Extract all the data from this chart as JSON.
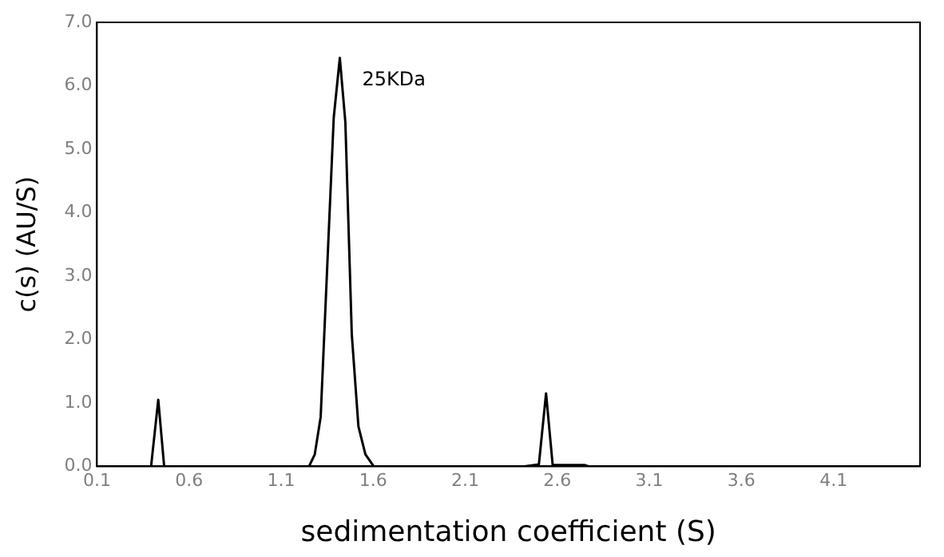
{
  "chart_data": {
    "type": "line",
    "xlabel": "sedimentation coefficient (S)",
    "ylabel": "c(s) (AU/S)",
    "x": [
      0.1,
      0.394,
      0.433,
      0.465,
      1.252,
      1.283,
      1.315,
      1.386,
      1.419,
      1.449,
      1.484,
      1.52,
      1.558,
      1.603,
      2.42,
      2.5,
      2.539,
      2.575,
      2.75,
      2.77,
      4.57
    ],
    "series": [
      {
        "color": "#000000",
        "values": [
          0,
          0,
          1.05,
          0,
          0,
          0.19,
          0.78,
          5.5,
          6.44,
          5.43,
          2.08,
          0.63,
          0.19,
          0,
          0,
          0.03,
          1.15,
          0.02,
          0.02,
          0,
          0
        ]
      }
    ],
    "xlim": [
      0.1,
      4.57
    ],
    "xticks": [
      0.1,
      0.6,
      1.1,
      1.6,
      2.1,
      2.6,
      3.1,
      3.6,
      4.1
    ],
    "ylim": [
      0,
      7
    ],
    "yticks": [
      {
        "value": 0,
        "label": "0.0"
      },
      {
        "value": 1,
        "label": "1.0"
      },
      {
        "value": 2,
        "label": "2.0"
      },
      {
        "value": 3,
        "label": "3.0"
      },
      {
        "value": 4,
        "label": "4.0"
      },
      {
        "value": 5,
        "label": "5.0"
      },
      {
        "value": 6,
        "label": "6.0"
      },
      {
        "value": 7,
        "label": "7.0"
      }
    ],
    "grid": false,
    "legend": false,
    "marker": "none",
    "line_style": "solid",
    "annotations": [
      {
        "text": "25KDa",
        "x": 1.419,
        "y": 6.44
      }
    ]
  }
}
